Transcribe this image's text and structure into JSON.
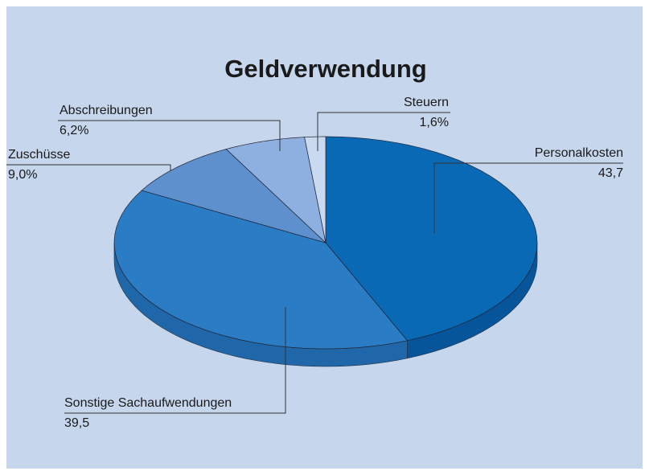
{
  "chart_data": {
    "type": "pie",
    "title": "Geldverwendung",
    "categories": [
      "Personalkosten",
      "Sonstige Sachaufwendungen",
      "Zuschüsse",
      "Abschreibungen",
      "Steuern"
    ],
    "values": [
      43.7,
      39.5,
      9.0,
      6.2,
      1.6
    ],
    "value_labels": [
      "43,7",
      "39,5",
      "9,0%",
      "6,2%",
      "1,6%"
    ],
    "colors": [
      "#0a69b5",
      "#2a7dc5",
      "#5d90cc",
      "#8eb0e0",
      "#c9d9f0"
    ],
    "side_colors": [
      "#06559a",
      "#1f67a8",
      "#4a79b3",
      "#7596c6",
      "#a9bcd8"
    ]
  }
}
